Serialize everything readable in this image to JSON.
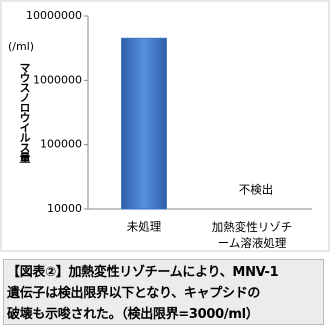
{
  "chart_data": {
    "type": "bar",
    "categories": [
      "未処理",
      "加熱変性リゾチーム溶液処理"
    ],
    "values": [
      4500000,
      null
    ],
    "color": "#3a72c4",
    "ylim": [
      10000,
      10000000
    ],
    "yticks": [
      10000,
      100000,
      1000000,
      10000000
    ],
    "log_scale": true,
    "grid": false,
    "y_unit": "(/ml)",
    "ylabel": "マウスノロウイルス量",
    "annotations": [
      "不検出"
    ]
  },
  "caption": {
    "lines": [
      "【図表②】加熱変性リゾチームにより、MNV-1",
      "遺伝子は検出限界以下となり、キャプシドの",
      "破壊も示唆された。（検出限界=3000/ml）"
    ]
  }
}
